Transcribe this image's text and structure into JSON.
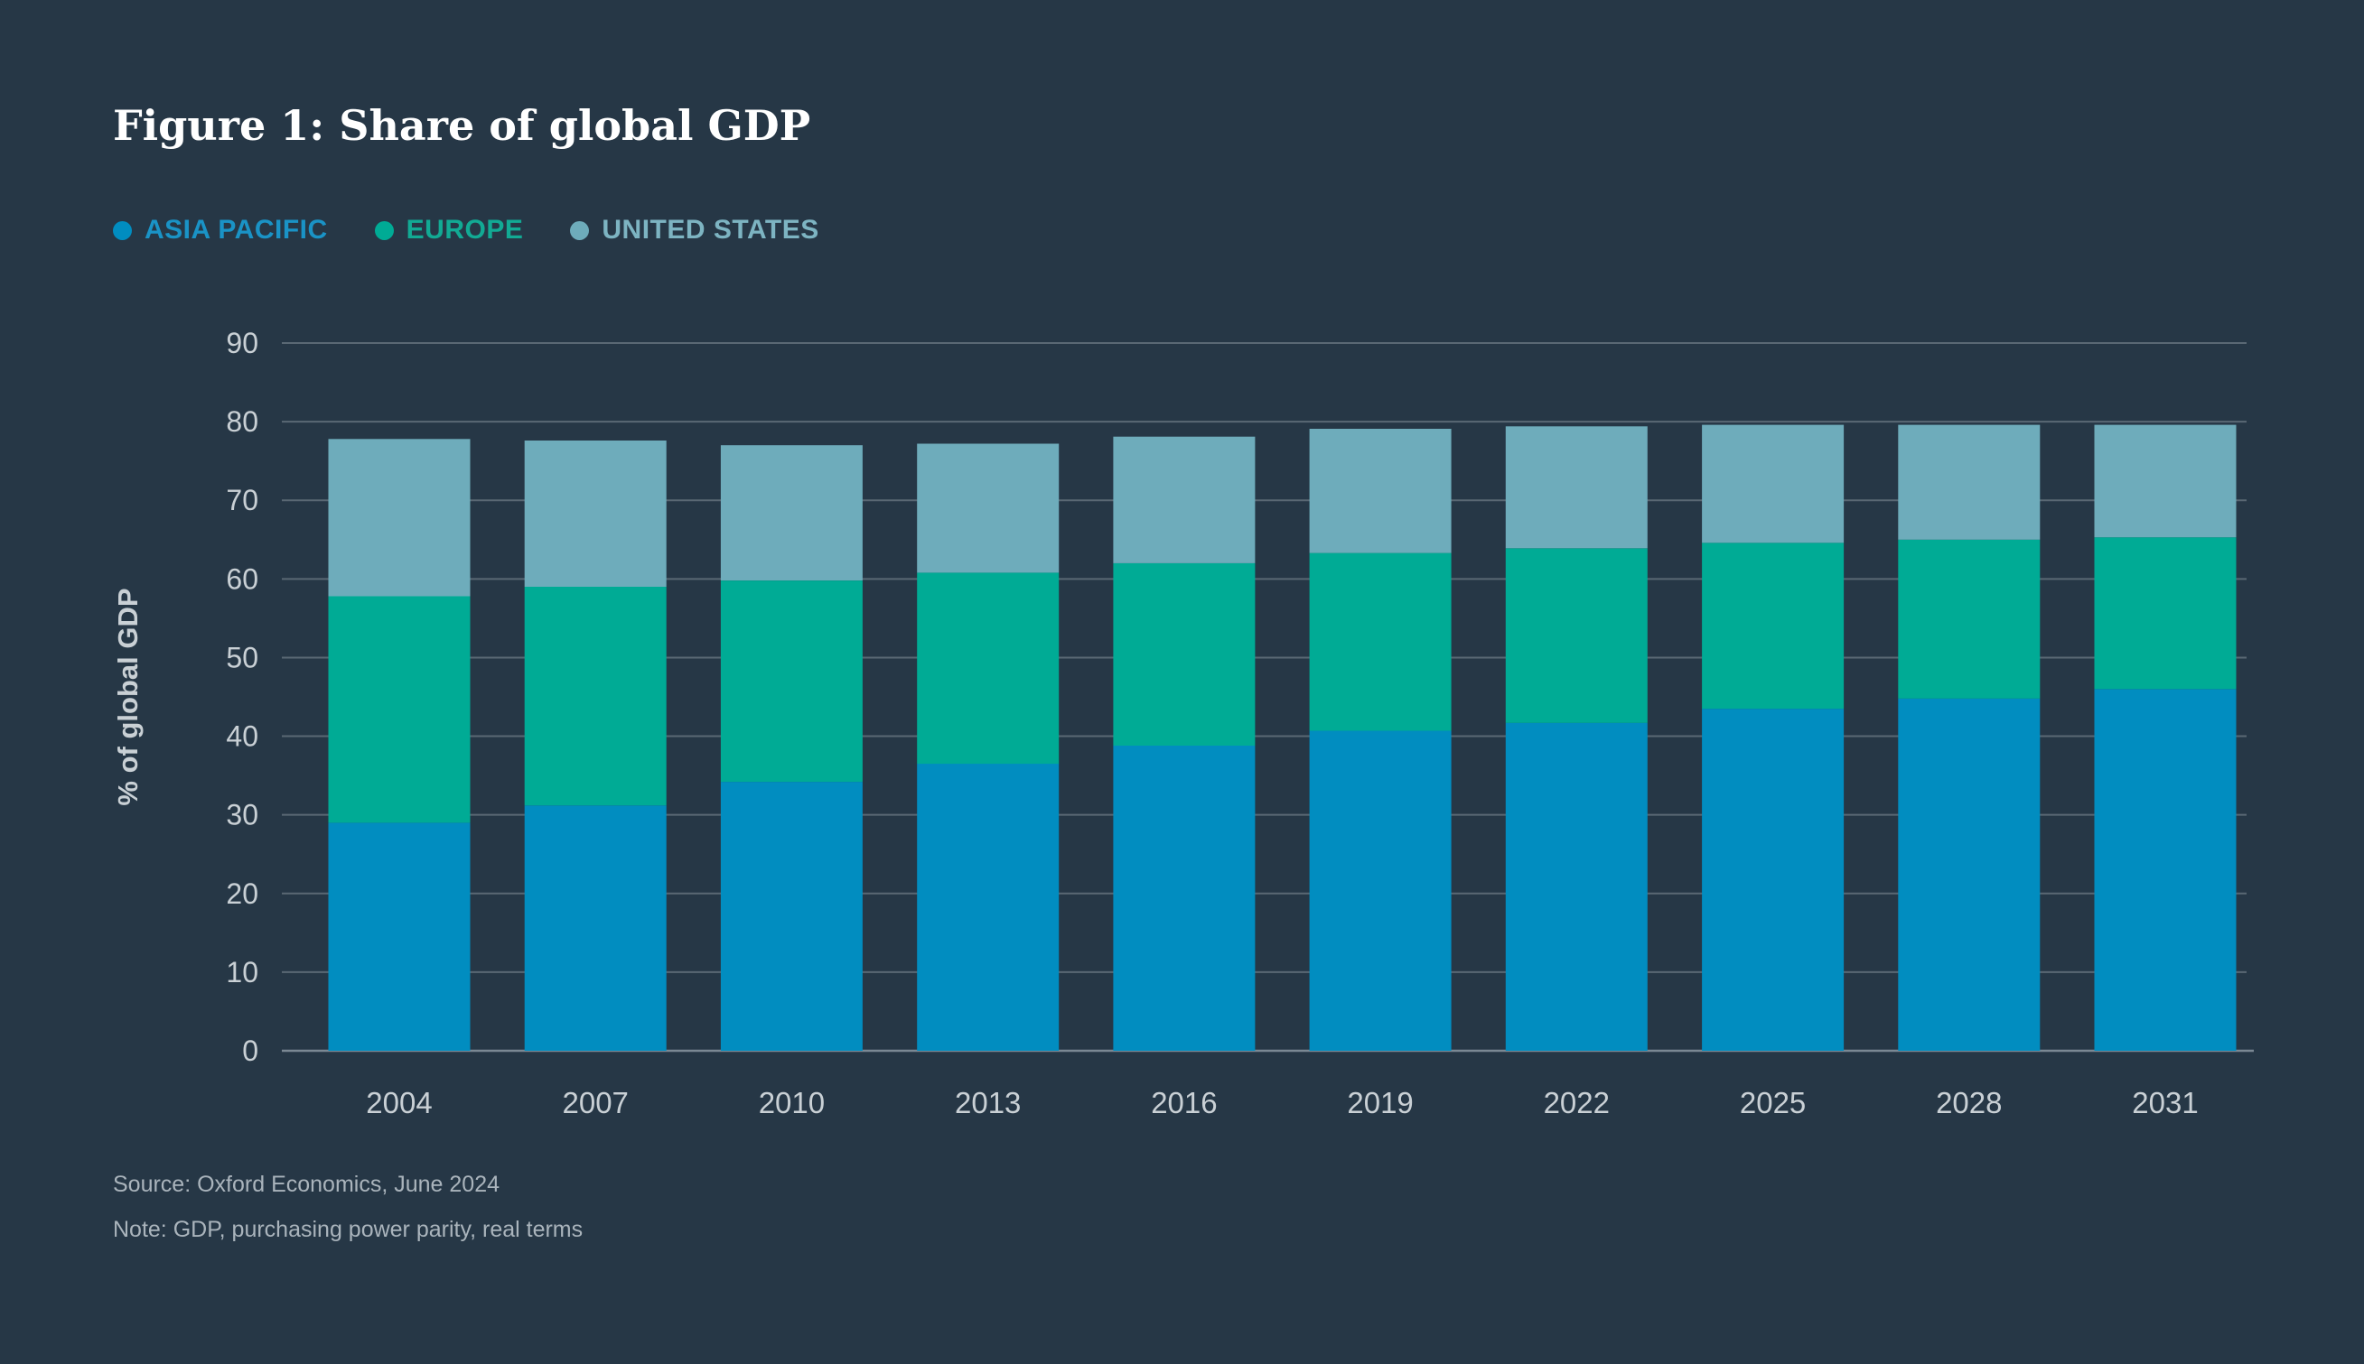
{
  "title": "Figure 1: Share of global GDP",
  "legend": [
    {
      "label": "ASIA PACIFIC",
      "color": "#018dc0"
    },
    {
      "label": "EUROPE",
      "color": "#00ab95"
    },
    {
      "label": "UNITED STATES",
      "color": "#6eacbb"
    }
  ],
  "chart_data": {
    "type": "bar",
    "stacked": true,
    "categories": [
      "2004",
      "2007",
      "2010",
      "2013",
      "2016",
      "2019",
      "2022",
      "2025",
      "2028",
      "2031"
    ],
    "series": [
      {
        "name": "ASIA PACIFIC",
        "color": "#018dc0",
        "values": [
          29.0,
          31.2,
          34.2,
          36.5,
          38.8,
          40.7,
          41.7,
          43.5,
          44.8,
          46.0
        ]
      },
      {
        "name": "EUROPE",
        "color": "#00ab95",
        "values": [
          28.8,
          27.8,
          25.6,
          24.3,
          23.2,
          22.6,
          22.2,
          21.1,
          20.2,
          19.3
        ]
      },
      {
        "name": "UNITED STATES",
        "color": "#6eacbb",
        "values": [
          20.0,
          18.6,
          17.2,
          16.4,
          16.1,
          15.8,
          15.5,
          15.0,
          14.6,
          14.3
        ]
      }
    ],
    "ylabel": "% of global GDP",
    "xlabel": "",
    "ylim": [
      0,
      90
    ],
    "yticks": [
      0,
      10,
      20,
      30,
      40,
      50,
      60,
      70,
      80,
      90
    ],
    "grid": true,
    "legend_position": "top-left"
  },
  "footnotes": {
    "source": "Source: Oxford Economics, June 2024",
    "note": "Note: GDP, purchasing power parity, real terms"
  }
}
